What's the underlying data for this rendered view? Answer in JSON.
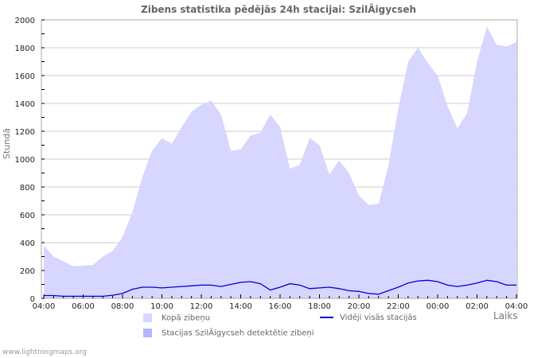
{
  "title": "Zibens statistika pēdējās 24h stacijai: SzilÃigycseh",
  "footer": "www.lightningmaps.org",
  "colors": {
    "total_fill": "#d6d6ff",
    "station_fill": "#b4b4ff",
    "average_line": "#0000dd",
    "grid": "#cccccc",
    "axis": "#aaaaaa"
  },
  "legend": {
    "total": "Kopā zibeņu",
    "station": "Stacijas SzilÃigycseh detektētie zibeņi",
    "average": "Vidēji visās stacijās"
  },
  "chart_data": {
    "type": "area",
    "title": "Zibens statistika pēdējās 24h stacijai: SzilÃigycseh",
    "xlabel": "Laiks",
    "ylabel": "Stundā",
    "ylim": [
      0,
      2000
    ],
    "yticks": [
      0,
      200,
      400,
      600,
      800,
      1000,
      1200,
      1400,
      1600,
      1800,
      2000
    ],
    "xticks": [
      "04:00",
      "06:00",
      "08:00",
      "10:00",
      "12:00",
      "14:00",
      "16:00",
      "18:00",
      "20:00",
      "22:00",
      "00:00",
      "02:00",
      "04:00"
    ],
    "grid": true,
    "legend_position": "bottom",
    "x": [
      "04:00",
      "04:30",
      "05:00",
      "05:30",
      "06:00",
      "06:30",
      "07:00",
      "07:30",
      "08:00",
      "08:30",
      "09:00",
      "09:30",
      "10:00",
      "10:30",
      "11:00",
      "11:30",
      "12:00",
      "12:30",
      "13:00",
      "13:30",
      "14:00",
      "14:30",
      "15:00",
      "15:30",
      "16:00",
      "16:30",
      "17:00",
      "17:30",
      "18:00",
      "18:30",
      "19:00",
      "19:30",
      "20:00",
      "20:30",
      "21:00",
      "21:30",
      "22:00",
      "22:30",
      "23:00",
      "23:30",
      "00:00",
      "00:30",
      "01:00",
      "01:30",
      "02:00",
      "02:30",
      "03:00",
      "03:30",
      "04:00"
    ],
    "series": [
      {
        "name": "Kopā zibeņu",
        "type": "area",
        "values": [
          380,
          300,
          265,
          230,
          235,
          240,
          300,
          340,
          440,
          620,
          870,
          1060,
          1150,
          1110,
          1230,
          1340,
          1390,
          1420,
          1320,
          1060,
          1070,
          1170,
          1190,
          1320,
          1230,
          930,
          960,
          1150,
          1100,
          890,
          990,
          900,
          740,
          670,
          680,
          950,
          1360,
          1700,
          1800,
          1690,
          1600,
          1380,
          1220,
          1330,
          1700,
          1950,
          1820,
          1810,
          1840
        ]
      },
      {
        "name": "Stacijas SzilÃigycseh detektētie zibeņi",
        "type": "area",
        "values": [
          0,
          0,
          0,
          0,
          0,
          0,
          0,
          0,
          0,
          0,
          0,
          0,
          0,
          0,
          0,
          0,
          0,
          0,
          0,
          0,
          0,
          0,
          0,
          0,
          0,
          0,
          0,
          0,
          0,
          0,
          0,
          0,
          0,
          0,
          0,
          0,
          0,
          0,
          0,
          0,
          0,
          0,
          0,
          0,
          0,
          0,
          0,
          0,
          0
        ]
      },
      {
        "name": "Vidēji visās stacijās",
        "type": "line",
        "values": [
          20,
          20,
          15,
          15,
          15,
          15,
          15,
          22,
          35,
          65,
          80,
          80,
          75,
          80,
          85,
          90,
          95,
          95,
          85,
          100,
          115,
          120,
          105,
          60,
          80,
          105,
          95,
          70,
          75,
          80,
          70,
          55,
          50,
          35,
          30,
          55,
          80,
          110,
          125,
          130,
          120,
          95,
          85,
          95,
          110,
          130,
          120,
          95,
          95
        ]
      }
    ]
  }
}
